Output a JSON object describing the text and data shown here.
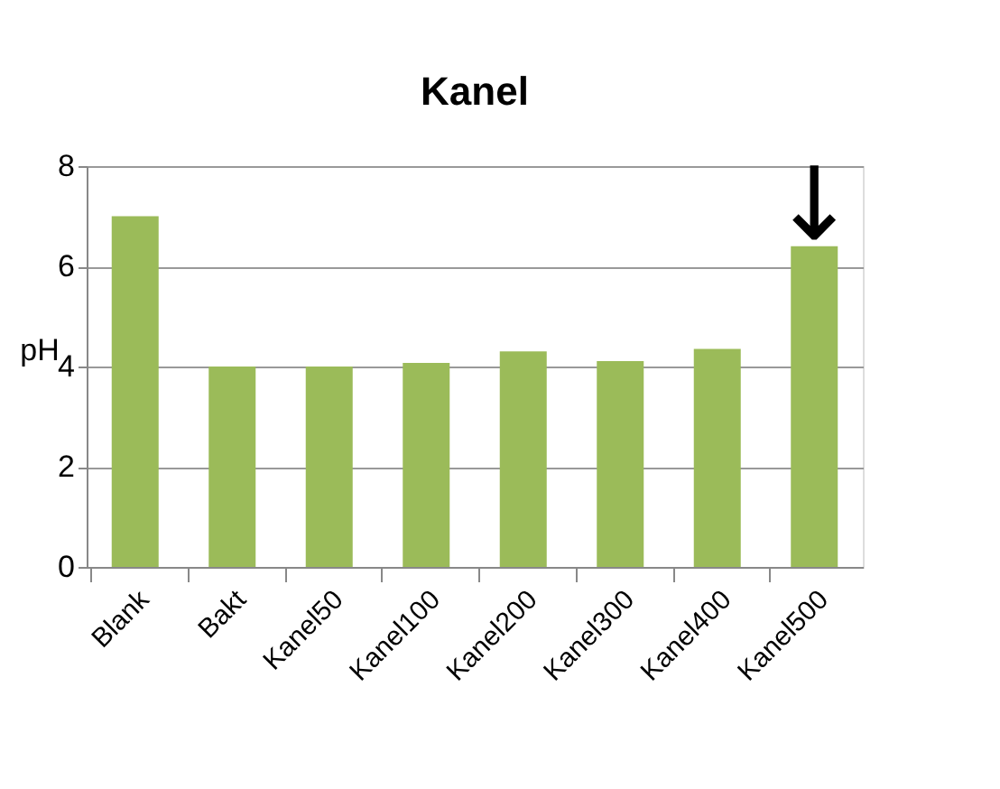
{
  "chart_data": {
    "type": "bar",
    "title": "Kanel",
    "ylabel": "pH",
    "categories": [
      "Blank",
      "Bakt",
      "Kanel50",
      "Kanel100",
      "Kanel200",
      "Kanel300",
      "Kanel400",
      "Kanel500"
    ],
    "values": [
      7.0,
      4.0,
      4.0,
      4.07,
      4.3,
      4.11,
      4.35,
      6.4
    ],
    "color": "#9bbb59",
    "ylim": [
      0,
      8
    ],
    "yticks": [
      0,
      2,
      4,
      6,
      8
    ],
    "grid": "y",
    "annotations": [
      {
        "text": "↓",
        "x": "Kanel500",
        "y": 6.4
      }
    ]
  }
}
